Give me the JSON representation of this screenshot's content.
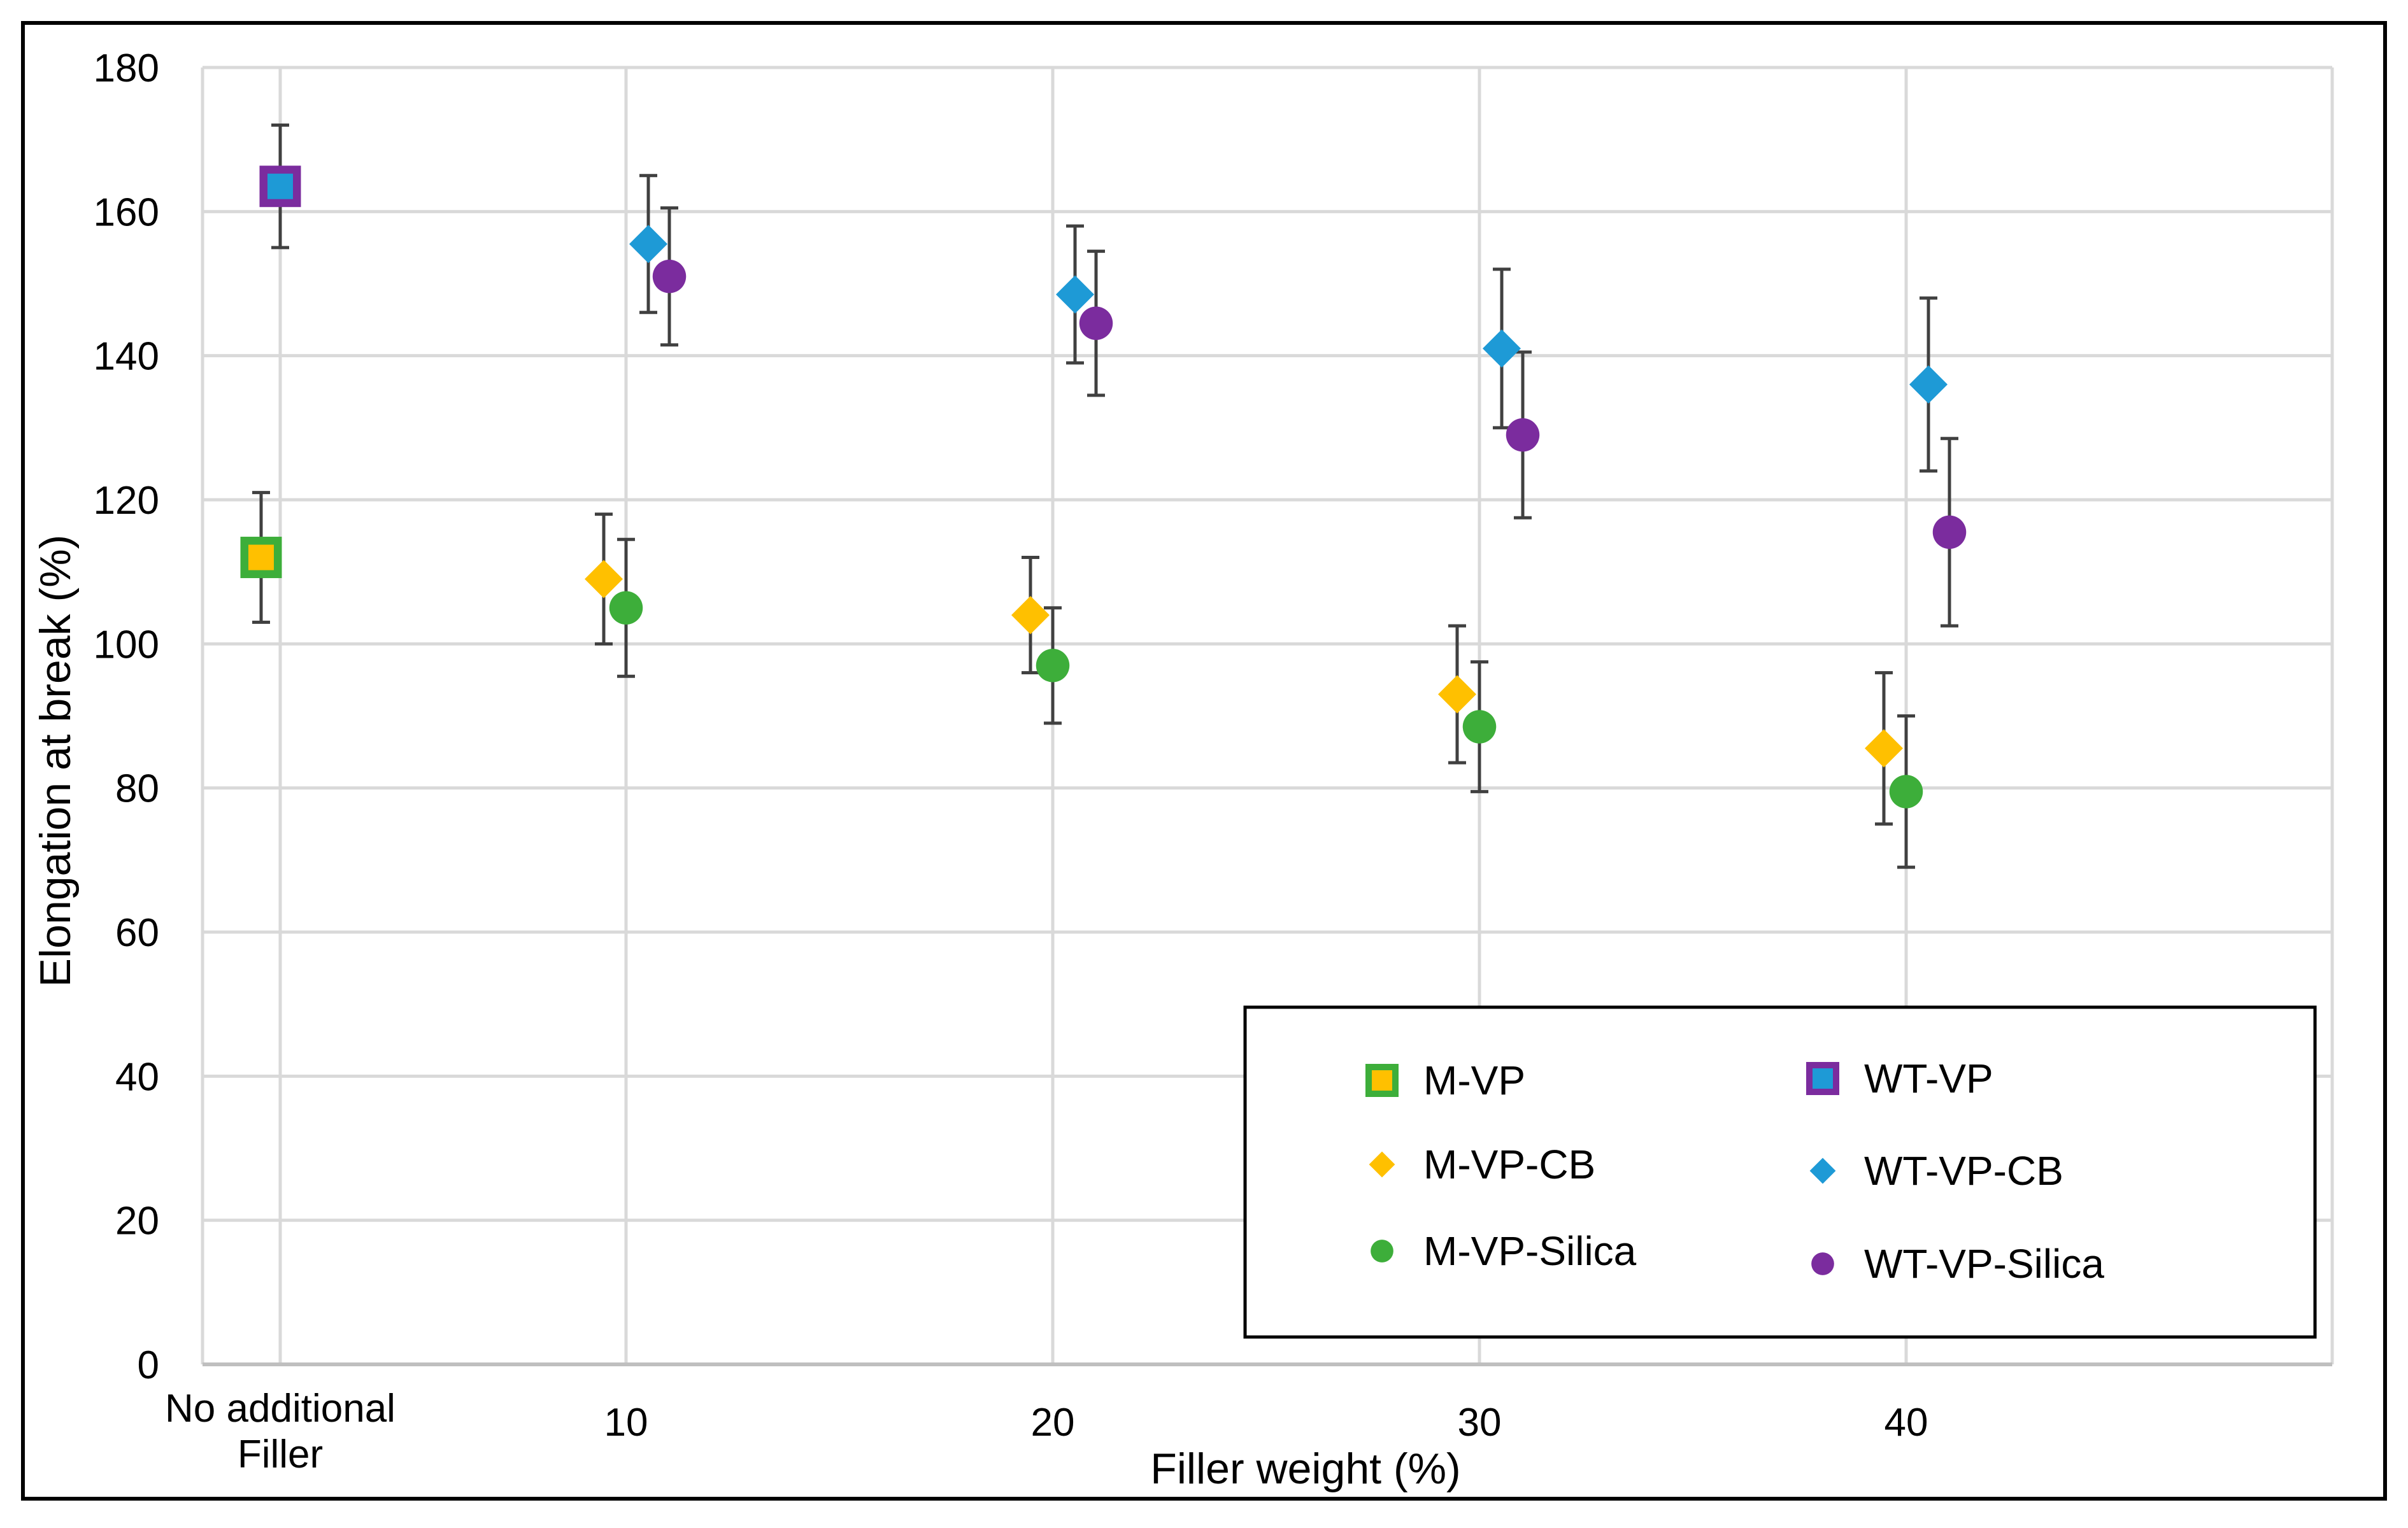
{
  "chart_data": {
    "type": "scatter",
    "xlabel": "Filler weight (%)",
    "ylabel": "Elongation at break (%)",
    "ylim": [
      0,
      180
    ],
    "yticks": [
      0,
      20,
      40,
      60,
      80,
      100,
      120,
      140,
      160,
      180
    ],
    "x_categories": [
      "No additional Filler",
      "10",
      "20",
      "30",
      "40"
    ],
    "x_category_lines": [
      "No additional",
      "Filler"
    ],
    "grid": true,
    "legend_position": "bottom-right",
    "series": [
      {
        "name": "M-VP",
        "marker": "square",
        "fill": "#FFC000",
        "stroke": "#3DAE3A",
        "points": [
          {
            "cat": "No additional Filler",
            "y": 112,
            "err": 9
          }
        ]
      },
      {
        "name": "WT-VP",
        "marker": "square",
        "fill": "#1E9AD6",
        "stroke": "#7B2C9E",
        "points": [
          {
            "cat": "No additional Filler",
            "y": 163.5,
            "err": 8.5
          }
        ]
      },
      {
        "name": "M-VP-CB",
        "marker": "diamond",
        "fill": "#FFC000",
        "stroke": "none",
        "points": [
          {
            "cat": "10",
            "y": 109,
            "err": 9
          },
          {
            "cat": "20",
            "y": 104,
            "err": 8
          },
          {
            "cat": "30",
            "y": 93,
            "err": 9.5
          },
          {
            "cat": "40",
            "y": 85.5,
            "err": 10.5
          }
        ]
      },
      {
        "name": "WT-VP-CB",
        "marker": "diamond",
        "fill": "#1E9AD6",
        "stroke": "none",
        "points": [
          {
            "cat": "10",
            "y": 155.5,
            "err": 9.5
          },
          {
            "cat": "20",
            "y": 148.5,
            "err": 9.5
          },
          {
            "cat": "30",
            "y": 141,
            "err": 11
          },
          {
            "cat": "40",
            "y": 136,
            "err": 12
          }
        ]
      },
      {
        "name": "M-VP-Silica",
        "marker": "circle",
        "fill": "#3DAE3A",
        "stroke": "none",
        "points": [
          {
            "cat": "10",
            "y": 105,
            "err": 9.5
          },
          {
            "cat": "20",
            "y": 97,
            "err": 8
          },
          {
            "cat": "30",
            "y": 88.5,
            "err": 9
          },
          {
            "cat": "40",
            "y": 79.5,
            "err": 10.5
          }
        ]
      },
      {
        "name": "WT-VP-Silica",
        "marker": "circle",
        "fill": "#7B2C9E",
        "stroke": "none",
        "points": [
          {
            "cat": "10",
            "y": 151,
            "err": 9.5
          },
          {
            "cat": "20",
            "y": 144.5,
            "err": 10
          },
          {
            "cat": "30",
            "y": 129,
            "err": 11.5
          },
          {
            "cat": "40",
            "y": 115.5,
            "err": 13
          }
        ]
      }
    ],
    "legend_order": [
      "M-VP",
      "WT-VP",
      "M-VP-CB",
      "WT-VP-CB",
      "M-VP-Silica",
      "WT-VP-Silica"
    ]
  }
}
